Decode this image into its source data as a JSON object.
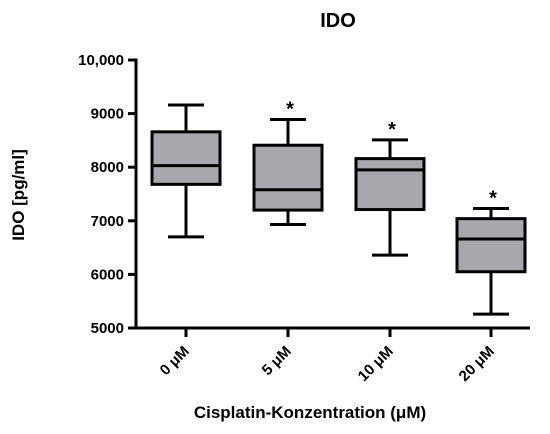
{
  "chart_data": {
    "type": "box",
    "title": "IDO",
    "xlabel": "Cisplatin-Konzentration (μM)",
    "ylabel": "IDO [pg/ml]",
    "ylim": [
      5000,
      10000
    ],
    "yticks": [
      "5000",
      "6000",
      "7000",
      "8000",
      "9000",
      "10,000"
    ],
    "ytick_values": [
      5000,
      6000,
      7000,
      8000,
      9000,
      10000
    ],
    "categories": [
      "0 μM",
      "5 μM",
      "10 μM",
      "20 μM"
    ],
    "boxes": [
      {
        "min": 6700,
        "q1": 7680,
        "median": 8030,
        "q3": 8660,
        "max": 9160,
        "annotation": ""
      },
      {
        "min": 6930,
        "q1": 7200,
        "median": 7580,
        "q3": 8410,
        "max": 8890,
        "annotation": "*"
      },
      {
        "min": 6360,
        "q1": 7210,
        "median": 7950,
        "q3": 8160,
        "max": 8510,
        "annotation": "*"
      },
      {
        "min": 5260,
        "q1": 6050,
        "median": 6660,
        "q3": 7040,
        "max": 7230,
        "annotation": "*"
      }
    ],
    "box_color": "#a7a7ad",
    "grid": false,
    "legend": "none"
  }
}
